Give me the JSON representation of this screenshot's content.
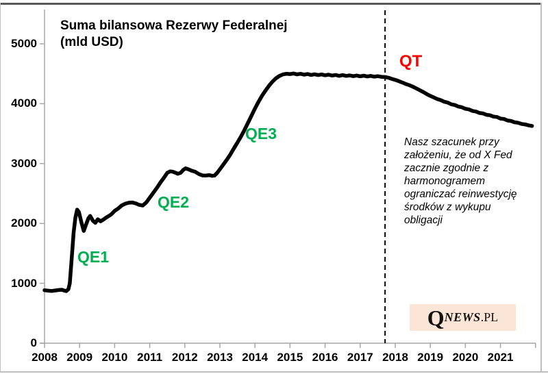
{
  "title": {
    "line1": "Suma bilansowa Rezerwy Federalnej",
    "line2": "(mld USD)"
  },
  "annotations": {
    "qe1": "QE1",
    "qe2": "QE2",
    "qe3": "QE3",
    "qt": "QT",
    "note_lines": [
      "Nasz szacunek przy",
      "założeniu, że od X Fed",
      "zacznie zgodnie z",
      "harmonogramem",
      "ograniczać reinwestycję",
      "środków z wykupu",
      "obligacji"
    ]
  },
  "logo": {
    "q": "Q",
    "news": "NEWS",
    "pl": ".PL",
    "bg_color": "#FBE5D6"
  },
  "colors": {
    "qe_green": "#00B050",
    "qt_red": "#FF0000",
    "line": "#000000",
    "axis": "#A6A6A6",
    "frame": "#BFBFBF",
    "frame_top": "#595959"
  },
  "chart_data": {
    "type": "line",
    "title": "Suma bilansowa Rezerwy Federalnej (mld USD)",
    "xlabel": "",
    "ylabel": "mld USD",
    "xlim": [
      2008,
      2022
    ],
    "ylim": [
      0,
      5500
    ],
    "grid": false,
    "legend_position": "none",
    "y_ticks": [
      0,
      1000,
      2000,
      3000,
      4000,
      5000
    ],
    "x_ticks": [
      2008,
      2009,
      2010,
      2011,
      2012,
      2013,
      2014,
      2015,
      2016,
      2017,
      2018,
      2019,
      2020,
      2021,
      2022
    ],
    "x_tick_labels": [
      "2008",
      "2009",
      "2010",
      "2011",
      "2012",
      "2013",
      "2014",
      "2015",
      "2016",
      "2017",
      "2018",
      "2019",
      "2020",
      "2021"
    ],
    "dashed_vline_x": 2017.71,
    "series": [
      {
        "name": "Suma bilansowa Fed (mld USD)",
        "points": [
          [
            2008.0,
            885
          ],
          [
            2008.1,
            878
          ],
          [
            2008.2,
            872
          ],
          [
            2008.3,
            880
          ],
          [
            2008.4,
            888
          ],
          [
            2008.5,
            892
          ],
          [
            2008.55,
            880
          ],
          [
            2008.62,
            870
          ],
          [
            2008.68,
            900
          ],
          [
            2008.72,
            1000
          ],
          [
            2008.78,
            1450
          ],
          [
            2008.83,
            1850
          ],
          [
            2008.88,
            2100
          ],
          [
            2008.93,
            2230
          ],
          [
            2008.98,
            2190
          ],
          [
            2009.05,
            2020
          ],
          [
            2009.12,
            1875
          ],
          [
            2009.18,
            1975
          ],
          [
            2009.25,
            2085
          ],
          [
            2009.3,
            2125
          ],
          [
            2009.38,
            2045
          ],
          [
            2009.45,
            2010
          ],
          [
            2009.52,
            2070
          ],
          [
            2009.6,
            2035
          ],
          [
            2009.68,
            2065
          ],
          [
            2009.75,
            2095
          ],
          [
            2009.82,
            2120
          ],
          [
            2009.9,
            2150
          ],
          [
            2010.0,
            2210
          ],
          [
            2010.1,
            2250
          ],
          [
            2010.2,
            2300
          ],
          [
            2010.3,
            2330
          ],
          [
            2010.4,
            2345
          ],
          [
            2010.5,
            2350
          ],
          [
            2010.6,
            2335
          ],
          [
            2010.7,
            2310
          ],
          [
            2010.8,
            2300
          ],
          [
            2010.9,
            2350
          ],
          [
            2011.0,
            2430
          ],
          [
            2011.1,
            2510
          ],
          [
            2011.2,
            2590
          ],
          [
            2011.3,
            2680
          ],
          [
            2011.4,
            2760
          ],
          [
            2011.5,
            2845
          ],
          [
            2011.58,
            2870
          ],
          [
            2011.65,
            2865
          ],
          [
            2011.72,
            2850
          ],
          [
            2011.8,
            2830
          ],
          [
            2011.88,
            2845
          ],
          [
            2011.95,
            2890
          ],
          [
            2012.02,
            2920
          ],
          [
            2012.1,
            2905
          ],
          [
            2012.2,
            2880
          ],
          [
            2012.3,
            2862
          ],
          [
            2012.4,
            2825
          ],
          [
            2012.5,
            2802
          ],
          [
            2012.6,
            2800
          ],
          [
            2012.7,
            2808
          ],
          [
            2012.78,
            2795
          ],
          [
            2012.85,
            2800
          ],
          [
            2012.93,
            2850
          ],
          [
            2013.0,
            2905
          ],
          [
            2013.1,
            2985
          ],
          [
            2013.2,
            3065
          ],
          [
            2013.3,
            3155
          ],
          [
            2013.4,
            3255
          ],
          [
            2013.5,
            3350
          ],
          [
            2013.6,
            3450
          ],
          [
            2013.7,
            3560
          ],
          [
            2013.8,
            3680
          ],
          [
            2013.9,
            3800
          ],
          [
            2014.0,
            3920
          ],
          [
            2014.1,
            4030
          ],
          [
            2014.2,
            4130
          ],
          [
            2014.3,
            4220
          ],
          [
            2014.4,
            4300
          ],
          [
            2014.5,
            4370
          ],
          [
            2014.6,
            4425
          ],
          [
            2014.7,
            4465
          ],
          [
            2014.8,
            4490
          ],
          [
            2014.9,
            4500
          ],
          [
            2015.0,
            4495
          ],
          [
            2015.1,
            4505
          ],
          [
            2015.2,
            4490
          ],
          [
            2015.3,
            4500
          ],
          [
            2015.4,
            4485
          ],
          [
            2015.5,
            4495
          ],
          [
            2015.6,
            4480
          ],
          [
            2015.7,
            4492
          ],
          [
            2015.8,
            4478
          ],
          [
            2015.9,
            4488
          ],
          [
            2016.0,
            4475
          ],
          [
            2016.1,
            4485
          ],
          [
            2016.2,
            4470
          ],
          [
            2016.3,
            4480
          ],
          [
            2016.4,
            4465
          ],
          [
            2016.5,
            4478
          ],
          [
            2016.6,
            4465
          ],
          [
            2016.7,
            4472
          ],
          [
            2016.8,
            4460
          ],
          [
            2016.9,
            4470
          ],
          [
            2017.0,
            4458
          ],
          [
            2017.1,
            4468
          ],
          [
            2017.2,
            4455
          ],
          [
            2017.3,
            4465
          ],
          [
            2017.4,
            4452
          ],
          [
            2017.5,
            4460
          ],
          [
            2017.6,
            4450
          ],
          [
            2017.71,
            4445
          ],
          [
            2017.8,
            4435
          ],
          [
            2017.9,
            4415
          ],
          [
            2018.0,
            4398
          ],
          [
            2018.1,
            4378
          ],
          [
            2018.2,
            4355
          ],
          [
            2018.3,
            4330
          ],
          [
            2018.4,
            4310
          ],
          [
            2018.5,
            4285
          ],
          [
            2018.6,
            4255
          ],
          [
            2018.7,
            4225
          ],
          [
            2018.8,
            4195
          ],
          [
            2018.9,
            4160
          ],
          [
            2019.0,
            4130
          ],
          [
            2019.1,
            4105
          ],
          [
            2019.2,
            4078
          ],
          [
            2019.3,
            4060
          ],
          [
            2019.4,
            4032
          ],
          [
            2019.5,
            4018
          ],
          [
            2019.6,
            3990
          ],
          [
            2019.7,
            3978
          ],
          [
            2019.8,
            3952
          ],
          [
            2019.9,
            3940
          ],
          [
            2020.0,
            3915
          ],
          [
            2020.1,
            3905
          ],
          [
            2020.2,
            3880
          ],
          [
            2020.3,
            3870
          ],
          [
            2020.4,
            3845
          ],
          [
            2020.5,
            3838
          ],
          [
            2020.6,
            3815
          ],
          [
            2020.7,
            3808
          ],
          [
            2020.8,
            3785
          ],
          [
            2020.9,
            3778
          ],
          [
            2021.0,
            3752
          ],
          [
            2021.1,
            3745
          ],
          [
            2021.2,
            3720
          ],
          [
            2021.3,
            3712
          ],
          [
            2021.4,
            3690
          ],
          [
            2021.5,
            3682
          ],
          [
            2021.6,
            3662
          ],
          [
            2021.7,
            3655
          ],
          [
            2021.8,
            3640
          ],
          [
            2021.9,
            3628
          ]
        ]
      }
    ]
  }
}
